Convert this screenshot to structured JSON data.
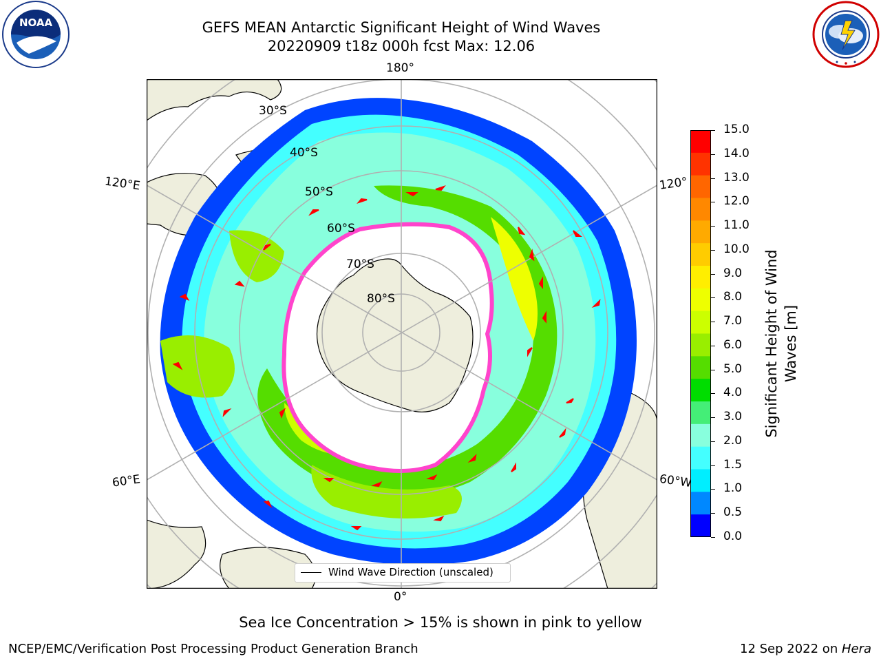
{
  "header": {
    "title_line1": "GEFS MEAN Antarctic Significant Height of Wind Waves",
    "title_line2": "20220909 t18z 000h fcst   Max: 12.06"
  },
  "logos": {
    "left": {
      "text": "NOAA",
      "ring_text": "NATIONAL OCEANIC AND ATMOSPHERIC ADMINISTRATION · U.S. DEPARTMENT OF COMMERCE",
      "icon": "noaa-logo"
    },
    "right": {
      "ring_text": "NATIONAL WEATHER SERVICE",
      "icon": "nws-logo"
    }
  },
  "map": {
    "longitude_labels": {
      "top": "180°",
      "bottom": "0°",
      "upper_left": "120°E",
      "lower_left": "60°E",
      "upper_right": "120°",
      "lower_right": "60°W"
    },
    "latitude_labels": [
      "30°S",
      "40°S",
      "50°S",
      "60°S",
      "70°S",
      "80°S"
    ],
    "legend_label": "Wind Wave Direction (unscaled)",
    "colors": {
      "land": "#eeeedd",
      "coast": "#000000",
      "grid": "#b0b0b0",
      "arrow": "#ff0000",
      "ice": "#ff44cc"
    }
  },
  "colorbar": {
    "title_line1": "Significant Height of Wind",
    "title_line2": "Waves [m]",
    "ticks": [
      "15.0",
      "14.0",
      "13.0",
      "12.0",
      "11.0",
      "10.0",
      "9.0",
      "8.0",
      "7.0",
      "6.0",
      "5.0",
      "4.0",
      "3.0",
      "2.0",
      "1.5",
      "1.0",
      "0.5",
      "0.0"
    ],
    "colors": [
      "#ff0000",
      "#ff3300",
      "#ff6600",
      "#ff8800",
      "#ffaa00",
      "#ffcc00",
      "#ffee00",
      "#eeff00",
      "#ccff00",
      "#99ee00",
      "#55dd00",
      "#00dd00",
      "#44ee77",
      "#88ffdd",
      "#44ffff",
      "#00eeff",
      "#0088ff",
      "#0000ff"
    ]
  },
  "footer": {
    "note": "Sea Ice Concentration > 15% is shown in pink to yellow",
    "left": "NCEP/EMC/Verification Post Processing Product Generation Branch",
    "right_date": "12 Sep 2022 on ",
    "right_host": "Hera"
  }
}
